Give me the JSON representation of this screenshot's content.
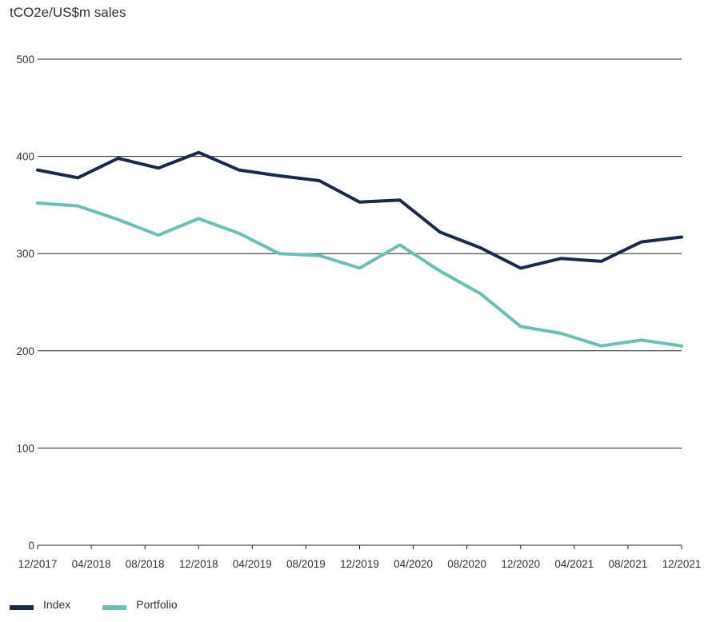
{
  "chart_data": {
    "type": "line",
    "ylabel": "tCO2e/US$m sales",
    "ylim": [
      0,
      500
    ],
    "yticks": [
      0,
      100,
      200,
      300,
      400,
      500
    ],
    "xticks": [
      "12/2017",
      "04/2018",
      "08/2018",
      "12/2018",
      "04/2019",
      "08/2019",
      "12/2019",
      "04/2020",
      "08/2020",
      "12/2020",
      "04/2021",
      "08/2021",
      "12/2021"
    ],
    "x": [
      "12/2017",
      "02/2018",
      "04/2018",
      "06/2018",
      "08/2018",
      "10/2018",
      "12/2018",
      "02/2019",
      "04/2019",
      "06/2019",
      "08/2019",
      "10/2019",
      "12/2019",
      "02/2020",
      "04/2020",
      "06/2020",
      "08/2020",
      "10/2020",
      "12/2020",
      "02/2021",
      "04/2021",
      "06/2021",
      "08/2021",
      "10/2021",
      "12/2021"
    ],
    "grid": true,
    "legend_position": "bottom-left",
    "series": [
      {
        "name": "Index",
        "color": "#1c2a4a",
        "points": [
          [
            "12/2017",
            386
          ],
          [
            "03/2018",
            378
          ],
          [
            "06/2018",
            398
          ],
          [
            "09/2018",
            388
          ],
          [
            "12/2018",
            404
          ],
          [
            "03/2019",
            386
          ],
          [
            "06/2019",
            380
          ],
          [
            "09/2019",
            375
          ],
          [
            "12/2019",
            353
          ],
          [
            "03/2020",
            355
          ],
          [
            "06/2020",
            322
          ],
          [
            "09/2020",
            306
          ],
          [
            "12/2020",
            285
          ],
          [
            "03/2021",
            295
          ],
          [
            "06/2021",
            292
          ],
          [
            "09/2021",
            312
          ],
          [
            "12/2021",
            317
          ]
        ]
      },
      {
        "name": "Portfolio",
        "color": "#6bbfb3",
        "points": [
          [
            "12/2017",
            352
          ],
          [
            "03/2018",
            349
          ],
          [
            "06/2018",
            335
          ],
          [
            "09/2018",
            319
          ],
          [
            "12/2018",
            336
          ],
          [
            "03/2019",
            321
          ],
          [
            "06/2019",
            300
          ],
          [
            "09/2019",
            298
          ],
          [
            "12/2019",
            285
          ],
          [
            "03/2020",
            309
          ],
          [
            "06/2020",
            282
          ],
          [
            "09/2020",
            259
          ],
          [
            "12/2020",
            225
          ],
          [
            "03/2021",
            218
          ],
          [
            "06/2021",
            205
          ],
          [
            "09/2021",
            211
          ],
          [
            "12/2021",
            205
          ]
        ]
      }
    ]
  }
}
